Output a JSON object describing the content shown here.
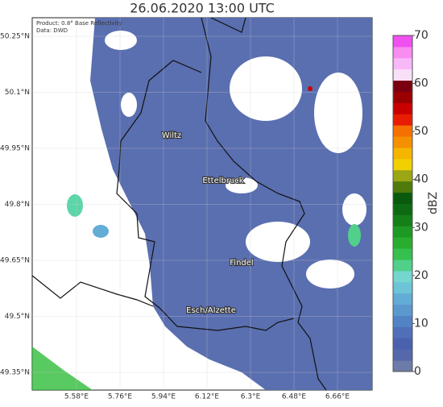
{
  "title": "26.06.2020 13:00 UTC",
  "product": "Product: 0.8° Base Reflectivity",
  "source": "Data: DWD",
  "places": [
    "Wiltz",
    "Ettelbruck",
    "Findel",
    "Esch/Alzette"
  ],
  "lon_ticks": [
    {
      "value": 5.58,
      "label": "5.58°E"
    },
    {
      "value": 5.76,
      "label": "5.76°E"
    },
    {
      "value": 5.94,
      "label": "5.94°E"
    },
    {
      "value": 6.12,
      "label": "6.12°E"
    },
    {
      "value": 6.3,
      "label": "6.3°E"
    },
    {
      "value": 6.48,
      "label": "6.48°E"
    },
    {
      "value": 6.66,
      "label": "6.66°E"
    }
  ],
  "lat_ticks": [
    {
      "value": 50.25,
      "label": "50.25°N"
    },
    {
      "value": 50.1,
      "label": "50.1°N"
    },
    {
      "value": 49.95,
      "label": "49.95°N"
    },
    {
      "value": 49.8,
      "label": "49.8°N"
    },
    {
      "value": 49.65,
      "label": "49.65°N"
    },
    {
      "value": 49.5,
      "label": "49.5°N"
    },
    {
      "value": 49.35,
      "label": "49.35°N"
    }
  ],
  "colorbar": {
    "label": "dBZ",
    "lim": [
      0,
      70
    ],
    "ticks": [
      0,
      10,
      20,
      30,
      40,
      50,
      60,
      70
    ],
    "colors": [
      "#6c7ba8",
      "#5468ab",
      "#4a62ae",
      "#4f6fb8",
      "#5283c4",
      "#5a98cd",
      "#62acd5",
      "#6cc4d6",
      "#74d6cf",
      "#50d08a",
      "#35c050",
      "#28ad2e",
      "#1e9a24",
      "#157f18",
      "#0e6a12",
      "#0a5a0e",
      "#4f7a0c",
      "#9aa614",
      "#f0d000",
      "#f5b400",
      "#f59000",
      "#f57000",
      "#e81c00",
      "#c80000",
      "#9a0000",
      "#7a0010",
      "#f8e0f8",
      "#f8b8f8",
      "#f88cf0",
      "#f050f0"
    ]
  }
}
